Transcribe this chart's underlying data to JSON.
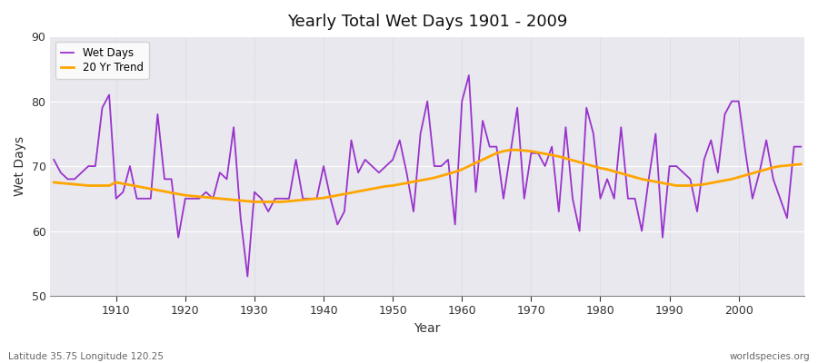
{
  "title": "Yearly Total Wet Days 1901 - 2009",
  "xlabel": "Year",
  "ylabel": "Wet Days",
  "subtitle": "Latitude 35.75 Longitude 120.25",
  "watermark": "worldspecies.org",
  "ylim": [
    50,
    90
  ],
  "yticks": [
    50,
    60,
    70,
    80,
    90
  ],
  "legend_wet": "Wet Days",
  "legend_trend": "20 Yr Trend",
  "wet_color": "#9933CC",
  "trend_color": "#FFA500",
  "fig_bg": "#F0F0F0",
  "plot_bg": "#DCDCE8",
  "years": [
    1901,
    1902,
    1903,
    1904,
    1905,
    1906,
    1907,
    1908,
    1909,
    1910,
    1911,
    1912,
    1913,
    1914,
    1915,
    1916,
    1917,
    1918,
    1919,
    1920,
    1921,
    1922,
    1923,
    1924,
    1925,
    1926,
    1927,
    1928,
    1929,
    1930,
    1931,
    1932,
    1933,
    1934,
    1935,
    1936,
    1937,
    1938,
    1939,
    1940,
    1941,
    1942,
    1943,
    1944,
    1945,
    1946,
    1947,
    1948,
    1949,
    1950,
    1951,
    1952,
    1953,
    1954,
    1955,
    1956,
    1957,
    1958,
    1959,
    1960,
    1961,
    1962,
    1963,
    1964,
    1965,
    1966,
    1967,
    1968,
    1969,
    1970,
    1971,
    1972,
    1973,
    1974,
    1975,
    1976,
    1977,
    1978,
    1979,
    1980,
    1981,
    1982,
    1983,
    1984,
    1985,
    1986,
    1987,
    1988,
    1989,
    1990,
    1991,
    1992,
    1993,
    1994,
    1995,
    1996,
    1997,
    1998,
    1999,
    2000,
    2001,
    2002,
    2003,
    2004,
    2005,
    2006,
    2007,
    2008,
    2009
  ],
  "wet_days": [
    71,
    69,
    68,
    68,
    69,
    70,
    70,
    79,
    81,
    65,
    66,
    70,
    65,
    65,
    65,
    78,
    68,
    68,
    59,
    65,
    65,
    65,
    66,
    65,
    69,
    68,
    76,
    62,
    53,
    66,
    65,
    63,
    65,
    65,
    65,
    71,
    65,
    65,
    65,
    70,
    65,
    61,
    63,
    74,
    69,
    71,
    70,
    69,
    70,
    71,
    74,
    69,
    63,
    75,
    80,
    70,
    70,
    71,
    61,
    80,
    84,
    66,
    77,
    73,
    73,
    65,
    72,
    79,
    65,
    72,
    72,
    70,
    73,
    63,
    76,
    65,
    60,
    79,
    75,
    65,
    68,
    65,
    76,
    65,
    65,
    60,
    68,
    75,
    59,
    70,
    70,
    69,
    68,
    63,
    71,
    74,
    69,
    78,
    80,
    80,
    72,
    65,
    69,
    74,
    68,
    65,
    62,
    73,
    73
  ],
  "trend": [
    67.5,
    67.4,
    67.3,
    67.2,
    67.1,
    67.0,
    67.0,
    67.0,
    67.0,
    67.5,
    67.3,
    67.1,
    66.9,
    66.7,
    66.5,
    66.3,
    66.1,
    65.9,
    65.7,
    65.5,
    65.4,
    65.3,
    65.2,
    65.1,
    65.0,
    64.9,
    64.8,
    64.7,
    64.6,
    64.5,
    64.5,
    64.5,
    64.5,
    64.5,
    64.6,
    64.7,
    64.8,
    64.9,
    65.0,
    65.1,
    65.3,
    65.5,
    65.7,
    65.9,
    66.1,
    66.3,
    66.5,
    66.7,
    66.9,
    67.0,
    67.2,
    67.4,
    67.6,
    67.8,
    68.0,
    68.2,
    68.5,
    68.8,
    69.1,
    69.5,
    70.0,
    70.5,
    71.0,
    71.5,
    72.0,
    72.3,
    72.5,
    72.5,
    72.4,
    72.3,
    72.1,
    71.9,
    71.7,
    71.5,
    71.2,
    70.9,
    70.6,
    70.3,
    70.0,
    69.7,
    69.5,
    69.2,
    68.9,
    68.6,
    68.3,
    68.0,
    67.8,
    67.6,
    67.4,
    67.2,
    67.0,
    67.0,
    67.0,
    67.1,
    67.2,
    67.4,
    67.6,
    67.8,
    68.0,
    68.3,
    68.6,
    68.9,
    69.2,
    69.5,
    69.8,
    70.0,
    70.1,
    70.2,
    70.3
  ]
}
